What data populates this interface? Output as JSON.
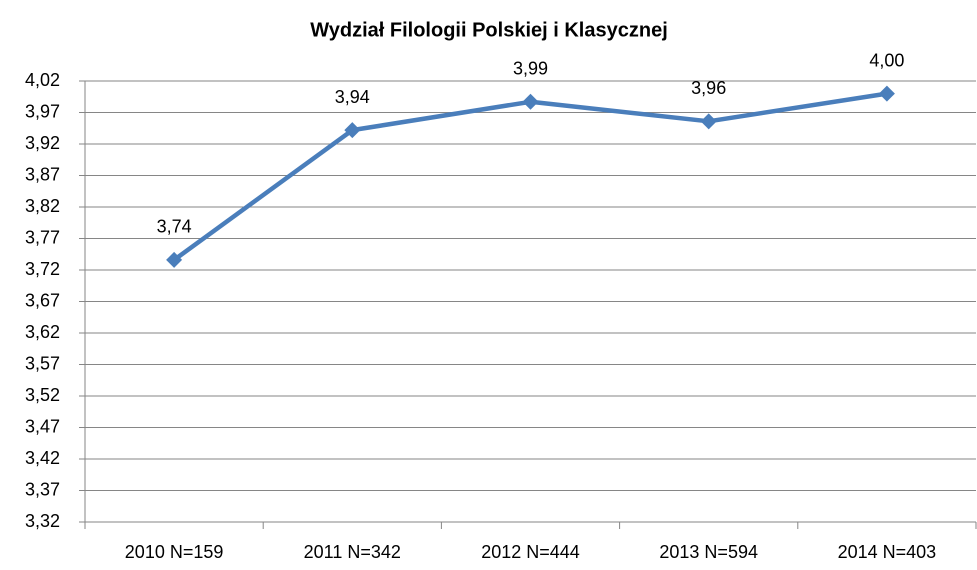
{
  "chart_data": {
    "type": "line",
    "title": "Wydział Filologii Polskiej i Klasycznej",
    "categories": [
      "2010 N=159",
      "2011 N=342",
      "2012 N=444",
      "2013 N=594",
      "2014 N=403"
    ],
    "series": [
      {
        "name": "Wydział Filologii Polskiej i Klasycznej",
        "color": "#4a7ebb",
        "values": [
          3.736,
          3.942,
          3.987,
          3.956,
          4.0
        ],
        "value_labels": [
          "3,74",
          "3,94",
          "3,99",
          "3,96",
          "4,00"
        ]
      }
    ],
    "ylim": [
      3.32,
      4.02
    ],
    "yticks": [
      {
        "value": 3.32,
        "label": "3,32"
      },
      {
        "value": 3.37,
        "label": "3,37"
      },
      {
        "value": 3.42,
        "label": "3,42"
      },
      {
        "value": 3.47,
        "label": "3,47"
      },
      {
        "value": 3.52,
        "label": "3,52"
      },
      {
        "value": 3.57,
        "label": "3,57"
      },
      {
        "value": 3.62,
        "label": "3,62"
      },
      {
        "value": 3.67,
        "label": "3,67"
      },
      {
        "value": 3.72,
        "label": "3,72"
      },
      {
        "value": 3.77,
        "label": "3,77"
      },
      {
        "value": 3.82,
        "label": "3,82"
      },
      {
        "value": 3.87,
        "label": "3,87"
      },
      {
        "value": 3.92,
        "label": "3,92"
      },
      {
        "value": 3.97,
        "label": "3,97"
      },
      {
        "value": 4.02,
        "label": "4,02"
      }
    ],
    "grid": true
  }
}
